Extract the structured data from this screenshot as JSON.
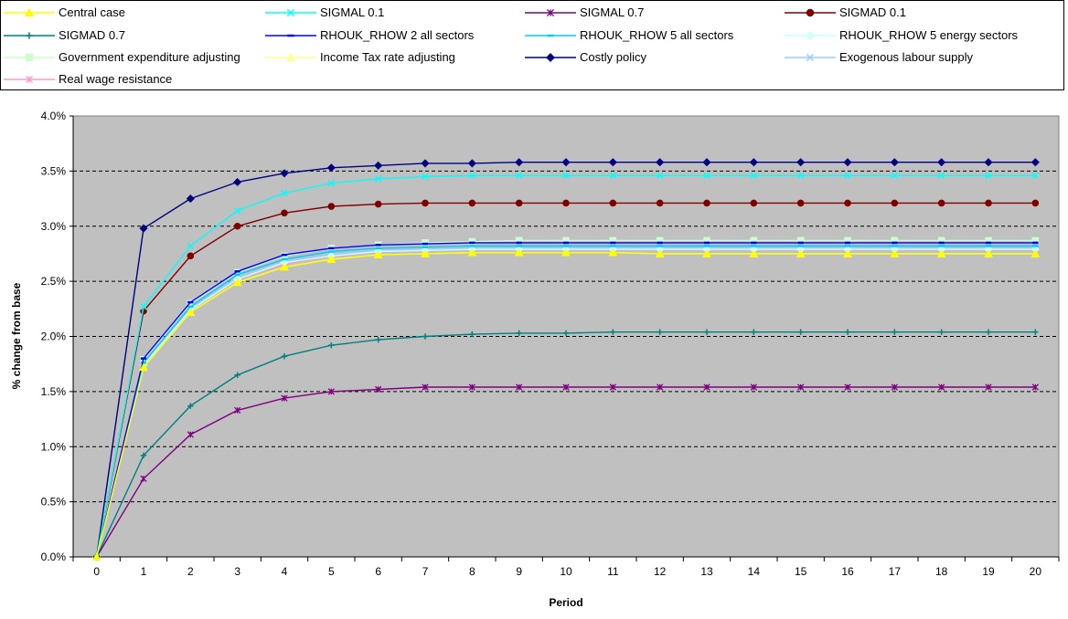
{
  "chart_data": {
    "type": "line",
    "title": "",
    "xlabel": "Period",
    "ylabel": "% change from base",
    "x": [
      0,
      1,
      2,
      3,
      4,
      5,
      6,
      7,
      8,
      9,
      10,
      11,
      12,
      13,
      14,
      15,
      16,
      17,
      18,
      19,
      20
    ],
    "ylim": [
      0,
      0.04
    ],
    "yticks": [
      "0.0%",
      "0.5%",
      "1.0%",
      "1.5%",
      "2.0%",
      "2.5%",
      "3.0%",
      "3.5%",
      "4.0%"
    ],
    "grid": "horizontal-dashed",
    "plot_background": "#c0c0c0",
    "legend_position": "top",
    "series": [
      {
        "name": "Central case",
        "color": "#ffff00",
        "marker": "triangle",
        "values": [
          0,
          0.0172,
          0.0222,
          0.0249,
          0.0263,
          0.027,
          0.0274,
          0.0275,
          0.0276,
          0.0276,
          0.0276,
          0.0276,
          0.0275,
          0.0275,
          0.0275,
          0.0275,
          0.0275,
          0.0275,
          0.0275,
          0.0275,
          0.0275
        ]
      },
      {
        "name": "SIGMAL 0.1",
        "color": "#00ffff",
        "marker": "x",
        "values": [
          0,
          0.0227,
          0.0282,
          0.0314,
          0.033,
          0.0339,
          0.0343,
          0.0345,
          0.0346,
          0.0346,
          0.0346,
          0.0346,
          0.0346,
          0.0346,
          0.0346,
          0.0346,
          0.0346,
          0.0346,
          0.0346,
          0.0346,
          0.0346
        ]
      },
      {
        "name": "SIGMAL 0.7",
        "color": "#800080",
        "marker": "star",
        "values": [
          0,
          0.0071,
          0.0111,
          0.0133,
          0.0144,
          0.015,
          0.0152,
          0.0154,
          0.0154,
          0.0154,
          0.0154,
          0.0154,
          0.0154,
          0.0154,
          0.0154,
          0.0154,
          0.0154,
          0.0154,
          0.0154,
          0.0154,
          0.0154
        ]
      },
      {
        "name": "SIGMAD 0.1",
        "color": "#800000",
        "marker": "circle",
        "values": [
          0,
          0.0223,
          0.0273,
          0.03,
          0.0312,
          0.0318,
          0.032,
          0.0321,
          0.0321,
          0.0321,
          0.0321,
          0.0321,
          0.0321,
          0.0321,
          0.0321,
          0.0321,
          0.0321,
          0.0321,
          0.0321,
          0.0321,
          0.0321
        ]
      },
      {
        "name": "SIGMAD 0.7",
        "color": "#008080",
        "marker": "plus",
        "values": [
          0,
          0.0092,
          0.0137,
          0.0165,
          0.0182,
          0.0192,
          0.0197,
          0.02,
          0.0202,
          0.0203,
          0.0203,
          0.0204,
          0.0204,
          0.0204,
          0.0204,
          0.0204,
          0.0204,
          0.0204,
          0.0204,
          0.0204,
          0.0204
        ]
      },
      {
        "name": "RHOUK_RHOW 2 all sectors",
        "color": "#0000ff",
        "marker": "dash",
        "values": [
          0,
          0.018,
          0.0231,
          0.0259,
          0.0274,
          0.028,
          0.0283,
          0.0284,
          0.0285,
          0.0285,
          0.0285,
          0.0285,
          0.0285,
          0.0285,
          0.0285,
          0.0285,
          0.0285,
          0.0285,
          0.0285,
          0.0285,
          0.0285
        ]
      },
      {
        "name": "RHOUK_RHOW 5 all sectors",
        "color": "#00ccff",
        "marker": "dash",
        "values": [
          0,
          0.0176,
          0.0227,
          0.0256,
          0.027,
          0.0277,
          0.028,
          0.0281,
          0.0282,
          0.0282,
          0.0282,
          0.0282,
          0.0282,
          0.0282,
          0.0282,
          0.0282,
          0.0282,
          0.0282,
          0.0282,
          0.0282,
          0.0282
        ]
      },
      {
        "name": "RHOUK_RHOW 5 energy sectors",
        "color": "#ccffff",
        "marker": "diamond",
        "values": [
          0,
          0.0174,
          0.0224,
          0.0252,
          0.0267,
          0.0273,
          0.0277,
          0.0278,
          0.0279,
          0.0279,
          0.0279,
          0.0279,
          0.0279,
          0.0279,
          0.0279,
          0.0279,
          0.0279,
          0.0279,
          0.0279,
          0.0279,
          0.0279
        ]
      },
      {
        "name": "Government expenditure adjusting",
        "color": "#ccffcc",
        "marker": "square",
        "values": [
          0,
          0.0179,
          0.023,
          0.0258,
          0.0273,
          0.028,
          0.0283,
          0.0285,
          0.0286,
          0.0287,
          0.0287,
          0.0287,
          0.0287,
          0.0287,
          0.0287,
          0.0287,
          0.0287,
          0.0287,
          0.0287,
          0.0287,
          0.0287
        ]
      },
      {
        "name": "Income Tax rate adjusting",
        "color": "#ffff99",
        "marker": "triangle",
        "values": [
          0,
          0.0172,
          0.0222,
          0.0249,
          0.0263,
          0.027,
          0.0274,
          0.0275,
          0.0276,
          0.0276,
          0.0276,
          0.0276,
          0.0275,
          0.0275,
          0.0275,
          0.0275,
          0.0275,
          0.0275,
          0.0275,
          0.0275,
          0.0275
        ]
      },
      {
        "name": "Costly policy",
        "color": "#000080",
        "marker": "diamond",
        "values": [
          0,
          0.0298,
          0.0325,
          0.034,
          0.0348,
          0.0353,
          0.0355,
          0.0357,
          0.0357,
          0.0358,
          0.0358,
          0.0358,
          0.0358,
          0.0358,
          0.0358,
          0.0358,
          0.0358,
          0.0358,
          0.0358,
          0.0358,
          0.0358
        ]
      },
      {
        "name": "Exogenous labour supply",
        "color": "#99ccff",
        "marker": "x",
        "values": [
          0,
          0.0175,
          0.0225,
          0.0254,
          0.0268,
          0.0275,
          0.0278,
          0.0279,
          0.028,
          0.028,
          0.028,
          0.028,
          0.028,
          0.028,
          0.028,
          0.028,
          0.028,
          0.028,
          0.028,
          0.028,
          0.028
        ]
      },
      {
        "name": "Real wage resistance",
        "color": "#ff99cc",
        "marker": "star",
        "values": [
          0,
          0.0174,
          0.0224,
          0.0252,
          0.0266,
          0.0273,
          0.0277,
          0.0278,
          0.0279,
          0.0279,
          0.0279,
          0.0279,
          0.0279,
          0.0279,
          0.0279,
          0.0279,
          0.0279,
          0.0279,
          0.0279,
          0.0279,
          0.0279
        ]
      }
    ]
  }
}
